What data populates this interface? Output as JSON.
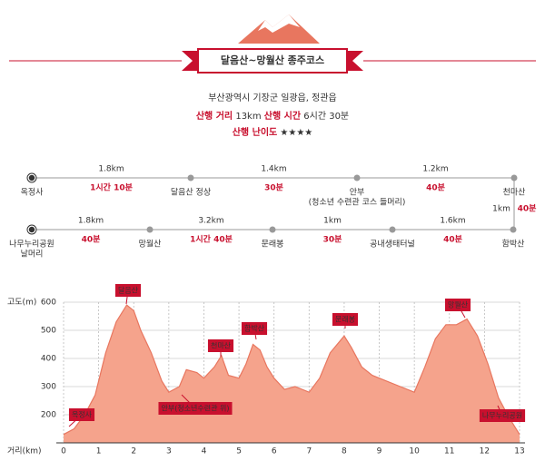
{
  "header": {
    "title": "달음산~망월산 종주코스",
    "location": "부산광역시 기장군 일광읍, 정관읍",
    "info": [
      {
        "label": "산행 거리",
        "value": "13km"
      },
      {
        "label": "산행 시간",
        "value": "6시간 30분"
      },
      {
        "label": "산행 난이도",
        "value": "★★★★"
      }
    ]
  },
  "route": {
    "row1": {
      "nodes": [
        {
          "name": "옥정사"
        },
        {
          "name": "달음산 정상"
        },
        {
          "name": "안부",
          "sub": "(청소년 수련관 코스 들머리)"
        },
        {
          "name": "천마산"
        }
      ],
      "segments": [
        {
          "distance": "1.8km",
          "time": "1시간 10분"
        },
        {
          "distance": "1.4km",
          "time": "30분"
        },
        {
          "distance": "1.2km",
          "time": "40분"
        }
      ]
    },
    "link": {
      "distance": "1km",
      "time": "40분"
    },
    "row2": {
      "nodes": [
        {
          "name": "나무누리공원",
          "sub": "날머리"
        },
        {
          "name": "망월산"
        },
        {
          "name": "문래봉"
        },
        {
          "name": "공내생태터널"
        },
        {
          "name": "함박산"
        }
      ],
      "segments": [
        {
          "distance": "1.8km",
          "time": "40분"
        },
        {
          "distance": "3.2km",
          "time": "1시간 40분"
        },
        {
          "distance": "1km",
          "time": "30분"
        },
        {
          "distance": "1.6km",
          "time": "40분"
        }
      ]
    }
  },
  "chart_data": {
    "type": "area",
    "y_label": "고도(m)",
    "x_label": "거리(km)",
    "color": "#f5a38c",
    "line_color": "#e8765f",
    "x": [
      0,
      0.3,
      0.6,
      0.9,
      1.2,
      1.5,
      1.8,
      2.0,
      2.2,
      2.5,
      2.8,
      3.0,
      3.3,
      3.5,
      3.8,
      4.0,
      4.3,
      4.5,
      4.7,
      5.0,
      5.2,
      5.4,
      5.6,
      5.8,
      6.0,
      6.3,
      6.6,
      7.0,
      7.3,
      7.6,
      8.0,
      8.2,
      8.5,
      8.8,
      9.2,
      9.6,
      10.0,
      10.3,
      10.6,
      10.9,
      11.2,
      11.5,
      11.8,
      12.1,
      12.4,
      12.7,
      13.0
    ],
    "values": [
      130,
      150,
      200,
      270,
      420,
      530,
      590,
      570,
      500,
      420,
      320,
      280,
      300,
      360,
      350,
      330,
      370,
      410,
      340,
      330,
      380,
      450,
      430,
      370,
      330,
      290,
      300,
      280,
      330,
      420,
      480,
      440,
      370,
      340,
      320,
      300,
      280,
      370,
      470,
      520,
      520,
      540,
      480,
      380,
      260,
      190,
      130
    ],
    "xlim": [
      0,
      13
    ],
    "xticks": [
      0,
      1,
      2,
      3,
      4,
      5,
      6,
      7,
      8,
      9,
      10,
      11,
      12,
      13
    ],
    "ylim": [
      100,
      600
    ],
    "yticks": [
      200,
      300,
      400,
      500,
      600
    ],
    "grid": true,
    "annotations": [
      "옥정사",
      "달음산",
      "안부(청소년수련관 위)",
      "천마산",
      "함박산",
      "문래봉",
      "망월산",
      "나무누리공원"
    ]
  }
}
